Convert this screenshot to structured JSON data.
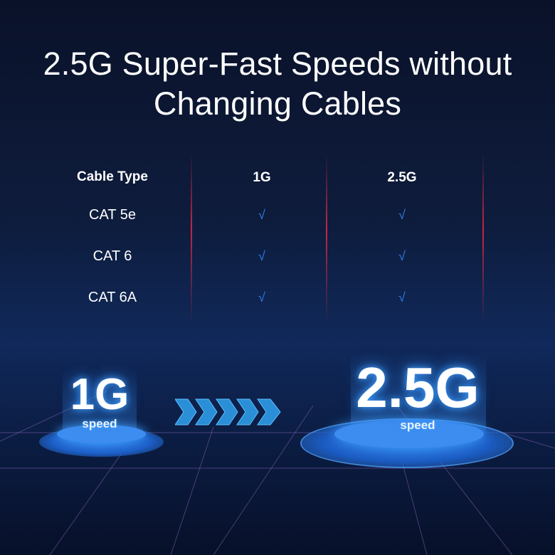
{
  "title": {
    "line1": "2.5G Super-Fast Speeds without",
    "line2": "Changing Cables"
  },
  "table": {
    "headers": [
      "Cable Type",
      "1G",
      "2.5G"
    ],
    "rows": [
      {
        "type": "CAT 5e",
        "g1": "√",
        "g25": "√"
      },
      {
        "type": "CAT 6",
        "g1": "√",
        "g25": "√"
      },
      {
        "type": "CAT 6A",
        "g1": "√",
        "g25": "√"
      }
    ]
  },
  "left_badge": {
    "value": "1G",
    "label": "speed"
  },
  "right_badge": {
    "value": "2.5G",
    "label": "speed"
  },
  "arrow_icon": "chevrons-right-icon",
  "colors": {
    "background": "#0e1c3d",
    "accent": "#2f7ee8",
    "glow": "#3fa0ff",
    "line_red": "#dc2846"
  }
}
